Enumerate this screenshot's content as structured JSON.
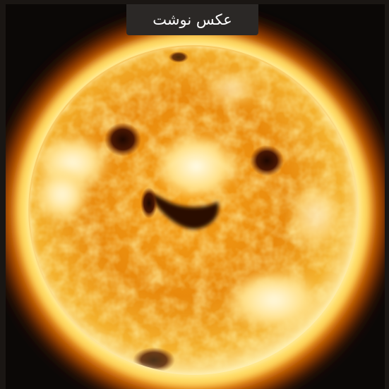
{
  "caption": {
    "text": "عکس نوشت"
  },
  "photo": {
    "subject_icon": "sun-corona-photo-icon",
    "colors": {
      "frame": "#1a1613",
      "caption_background": "#2b2826",
      "caption_text": "#ffffff",
      "glow_outer": "#b33a00",
      "glow_mid": "#ffb300",
      "disk_bright": "#fff4c2",
      "disk_base": "#e8860a",
      "coronal_hole": "#2a0d02"
    }
  }
}
